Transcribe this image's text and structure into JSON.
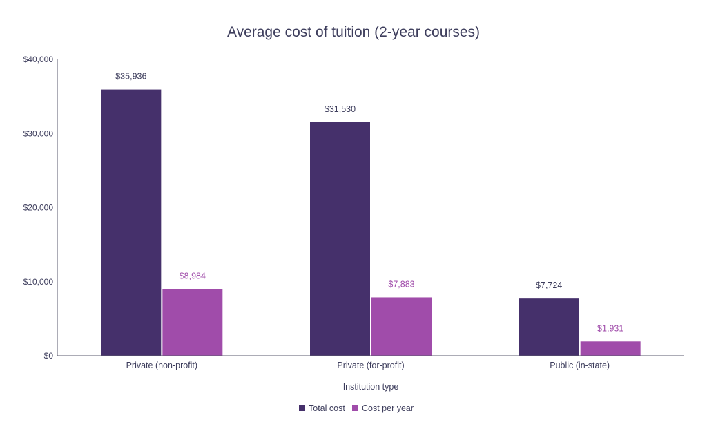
{
  "chart_data": {
    "type": "bar",
    "title": "Average cost of tuition (2-year courses)",
    "xlabel": "Institution type",
    "ylabel": "",
    "ylim": [
      0,
      40000
    ],
    "yticks": [
      0,
      10000,
      20000,
      30000,
      40000
    ],
    "ytick_labels": [
      "$0",
      "$10,000",
      "$20,000",
      "$30,000",
      "$40,000"
    ],
    "categories": [
      "Private (non-profit)",
      "Private (for-profit)",
      "Public (in-state)"
    ],
    "series": [
      {
        "name": "Total cost",
        "color": "#45306b",
        "values": [
          35936,
          31530,
          7724
        ],
        "labels": [
          "$35,936",
          "$31,530",
          "$7,724"
        ]
      },
      {
        "name": "Cost per year",
        "color": "#a04caa",
        "values": [
          8984,
          7883,
          1931
        ],
        "labels": [
          "$8,984",
          "$7,883",
          "$1,931"
        ]
      }
    ],
    "legend_position": "bottom-center",
    "grid": false
  }
}
